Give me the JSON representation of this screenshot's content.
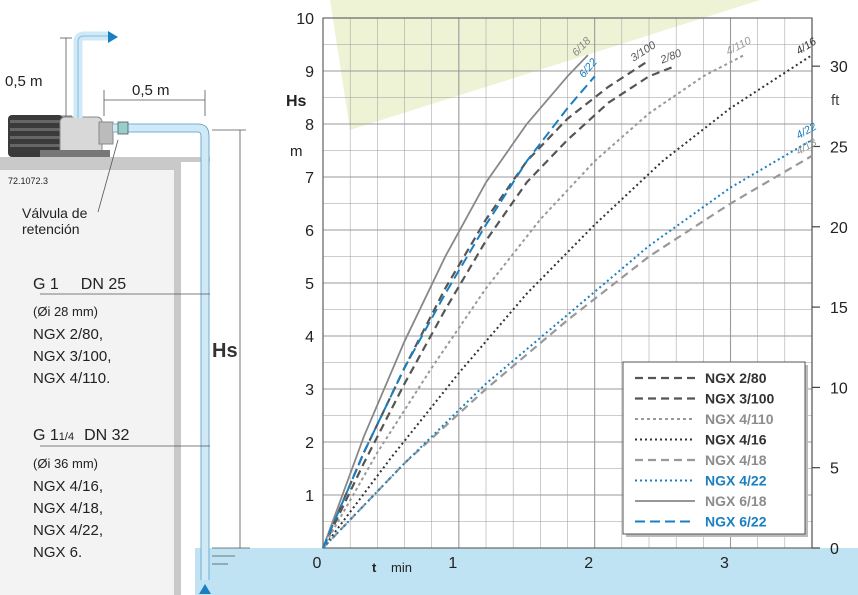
{
  "diagram": {
    "code": "72.1072.3",
    "dim_vertical": "0,5 m",
    "dim_horizontal": "0,5 m",
    "valve_line1": "Válvula de",
    "valve_line2": "retención",
    "hs_label": "Hs",
    "group1": {
      "size_main": "G 1",
      "size_dn": "DN 25",
      "inner": "(Øi 28 mm)",
      "models": [
        "NGX 2/80,",
        "NGX 3/100,",
        "NGX 4/110."
      ]
    },
    "group2": {
      "size_main": "G 1",
      "size_frac": "1/4",
      "size_dn": "DN 32",
      "inner": "(Øi 36 mm)",
      "models": [
        "NGX 4/16,",
        "NGX 4/18,",
        "NGX 4/22,",
        "NGX 6."
      ]
    }
  },
  "colors": {
    "water": "#bfe3f3",
    "pipe": "#cfe9f7",
    "wall": "#c6c6c6",
    "accent_blue": "#1a7fc1",
    "background_wedge": "#eef3d6"
  },
  "chart_data": {
    "type": "line",
    "title": "",
    "ylabel": "Hs",
    "ylabel_unit": "m",
    "y2label": "ft",
    "xlabel": "t",
    "xlabel_unit": "min",
    "xlim": [
      0,
      3.6
    ],
    "ylim": [
      0,
      10
    ],
    "y2lim": [
      0,
      33
    ],
    "x_ticks": [
      "0",
      "1",
      "2",
      "3"
    ],
    "y_ticks": [
      "1",
      "2",
      "3",
      "4",
      "5",
      "6",
      "7",
      "8",
      "9",
      "10"
    ],
    "y2_ticks": [
      "0",
      "5",
      "10",
      "15",
      "20",
      "25",
      "30"
    ],
    "grid": true,
    "legend": "bottom-right",
    "series": [
      {
        "name": "NGX 2/80",
        "label": "2/80",
        "color": "#555555",
        "dash": "8,5",
        "width": 2.2,
        "points": [
          [
            0,
            0
          ],
          [
            0.3,
            1.6
          ],
          [
            0.6,
            3.1
          ],
          [
            0.9,
            4.5
          ],
          [
            1.2,
            5.8
          ],
          [
            1.5,
            6.9
          ],
          [
            1.8,
            7.7
          ],
          [
            2.1,
            8.4
          ],
          [
            2.4,
            8.9
          ],
          [
            2.6,
            9.1
          ]
        ]
      },
      {
        "name": "NGX 3/100",
        "label": "3/100",
        "color": "#555555",
        "dash": "8,5",
        "width": 2.2,
        "points": [
          [
            0,
            0
          ],
          [
            0.3,
            1.8
          ],
          [
            0.6,
            3.4
          ],
          [
            0.9,
            4.9
          ],
          [
            1.2,
            6.2
          ],
          [
            1.5,
            7.3
          ],
          [
            1.8,
            8.1
          ],
          [
            2.1,
            8.7
          ],
          [
            2.4,
            9.2
          ]
        ]
      },
      {
        "name": "NGX 4/110",
        "label": "4/110",
        "color": "#999999",
        "dash": "3,3",
        "width": 2,
        "points": [
          [
            0,
            0
          ],
          [
            0.4,
            1.8
          ],
          [
            0.8,
            3.4
          ],
          [
            1.2,
            4.9
          ],
          [
            1.6,
            6.2
          ],
          [
            2.0,
            7.3
          ],
          [
            2.4,
            8.2
          ],
          [
            2.8,
            8.9
          ],
          [
            3.1,
            9.3
          ]
        ]
      },
      {
        "name": "NGX 4/16",
        "label": "4/16",
        "color": "#333333",
        "dash": "2,3",
        "width": 2,
        "points": [
          [
            0,
            0
          ],
          [
            0.5,
            1.7
          ],
          [
            1.0,
            3.3
          ],
          [
            1.5,
            4.8
          ],
          [
            2.0,
            6.1
          ],
          [
            2.5,
            7.3
          ],
          [
            3.0,
            8.3
          ],
          [
            3.6,
            9.3
          ]
        ]
      },
      {
        "name": "NGX 4/18",
        "label": "4/18",
        "color": "#999999",
        "dash": "8,5",
        "width": 2.2,
        "points": [
          [
            0,
            0
          ],
          [
            0.6,
            1.6
          ],
          [
            1.2,
            3.0
          ],
          [
            1.8,
            4.3
          ],
          [
            2.4,
            5.5
          ],
          [
            3.0,
            6.5
          ],
          [
            3.6,
            7.4
          ]
        ]
      },
      {
        "name": "NGX 4/22",
        "label": "4/22",
        "color": "#1a7fc1",
        "dash": "2,3",
        "width": 2,
        "points": [
          [
            0,
            0
          ],
          [
            0.6,
            1.6
          ],
          [
            1.2,
            3.1
          ],
          [
            1.8,
            4.4
          ],
          [
            2.4,
            5.7
          ],
          [
            3.0,
            6.8
          ],
          [
            3.6,
            7.7
          ]
        ]
      },
      {
        "name": "NGX 6/18",
        "label": "6/18",
        "color": "#888888",
        "dash": "",
        "width": 1.8,
        "points": [
          [
            0,
            0
          ],
          [
            0.3,
            2.1
          ],
          [
            0.6,
            3.9
          ],
          [
            0.9,
            5.5
          ],
          [
            1.2,
            6.9
          ],
          [
            1.5,
            8.0
          ],
          [
            1.8,
            8.9
          ],
          [
            1.95,
            9.3
          ]
        ]
      },
      {
        "name": "NGX 6/22",
        "label": "6/22",
        "color": "#1a7fc1",
        "dash": "10,5",
        "width": 2,
        "points": [
          [
            0,
            0
          ],
          [
            0.3,
            1.8
          ],
          [
            0.6,
            3.4
          ],
          [
            0.9,
            4.8
          ],
          [
            1.2,
            6.1
          ],
          [
            1.5,
            7.3
          ],
          [
            1.8,
            8.3
          ],
          [
            2.0,
            8.9
          ]
        ]
      }
    ]
  }
}
